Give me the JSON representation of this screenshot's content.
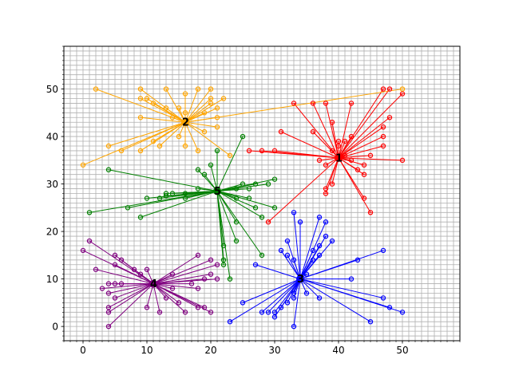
{
  "chart_data": {
    "type": "scatter",
    "title": "",
    "xlabel": "",
    "ylabel": "",
    "xlim": [
      -3,
      59
    ],
    "ylim": [
      -3,
      59
    ],
    "x_ticks": [
      0,
      10,
      20,
      30,
      40,
      50
    ],
    "y_ticks": [
      0,
      10,
      20,
      30,
      40,
      50
    ],
    "minor_tick_step": 1,
    "grid": "minor",
    "legend": "none",
    "series": [
      {
        "label": "1",
        "color": "#ff0000",
        "center": [
          40,
          35.5
        ],
        "points": [
          [
            33,
            47
          ],
          [
            36,
            47
          ],
          [
            38,
            47
          ],
          [
            42,
            47
          ],
          [
            39,
            43
          ],
          [
            36,
            41
          ],
          [
            31,
            41
          ],
          [
            26,
            37
          ],
          [
            28,
            37
          ],
          [
            30,
            37
          ],
          [
            37,
            35
          ],
          [
            38,
            34
          ],
          [
            39,
            37
          ],
          [
            40,
            38
          ],
          [
            40,
            39
          ],
          [
            41,
            36
          ],
          [
            41,
            39
          ],
          [
            42,
            35
          ],
          [
            42,
            40
          ],
          [
            43,
            33
          ],
          [
            44,
            32
          ],
          [
            44,
            34
          ],
          [
            45,
            36
          ],
          [
            47,
            38
          ],
          [
            47,
            40
          ],
          [
            47,
            42
          ],
          [
            48,
            44
          ],
          [
            47,
            50
          ],
          [
            48,
            50
          ],
          [
            50,
            49
          ],
          [
            50,
            35
          ],
          [
            44,
            27
          ],
          [
            45,
            24
          ],
          [
            38,
            29
          ],
          [
            38,
            28
          ],
          [
            39,
            30
          ],
          [
            29,
            22
          ]
        ]
      },
      {
        "label": "2",
        "color": "#ffa500",
        "center": [
          16,
          43
        ],
        "points": [
          [
            2,
            50
          ],
          [
            9,
            50
          ],
          [
            13,
            50
          ],
          [
            10,
            48
          ],
          [
            9,
            48
          ],
          [
            11,
            47
          ],
          [
            13,
            46
          ],
          [
            15,
            46
          ],
          [
            16,
            49
          ],
          [
            18,
            50
          ],
          [
            20,
            50
          ],
          [
            20,
            48
          ],
          [
            22,
            48
          ],
          [
            20,
            47
          ],
          [
            21,
            46
          ],
          [
            19,
            45
          ],
          [
            21,
            44
          ],
          [
            21,
            42
          ],
          [
            19,
            41
          ],
          [
            15,
            40
          ],
          [
            16,
            38
          ],
          [
            18,
            37
          ],
          [
            23,
            36
          ],
          [
            11,
            39
          ],
          [
            12,
            38
          ],
          [
            9,
            37
          ],
          [
            6,
            37
          ],
          [
            4,
            38
          ],
          [
            0,
            34
          ],
          [
            9,
            44
          ],
          [
            14,
            44
          ],
          [
            16,
            45
          ],
          [
            50,
            50
          ]
        ]
      },
      {
        "label": "5",
        "color": "#008000",
        "center": [
          21,
          28.5
        ],
        "points": [
          [
            4,
            33
          ],
          [
            1,
            24
          ],
          [
            7,
            25
          ],
          [
            9,
            23
          ],
          [
            10,
            27
          ],
          [
            12,
            27
          ],
          [
            13,
            28
          ],
          [
            13,
            27.5
          ],
          [
            16,
            27
          ],
          [
            18,
            29
          ],
          [
            18,
            33
          ],
          [
            19,
            32
          ],
          [
            20,
            34
          ],
          [
            21,
            37
          ],
          [
            25,
            40
          ],
          [
            24,
            29
          ],
          [
            25,
            30
          ],
          [
            26,
            29
          ],
          [
            27,
            30
          ],
          [
            29,
            30
          ],
          [
            30,
            31
          ],
          [
            26,
            27
          ],
          [
            27,
            25
          ],
          [
            28,
            23
          ],
          [
            30,
            25
          ],
          [
            24,
            22
          ],
          [
            24,
            18
          ],
          [
            22,
            17
          ],
          [
            22,
            14
          ],
          [
            22,
            13
          ],
          [
            23,
            10
          ],
          [
            28,
            15
          ],
          [
            24,
            27
          ],
          [
            14,
            28
          ],
          [
            16,
            28
          ]
        ]
      },
      {
        "label": "3",
        "color": "#0000ff",
        "center": [
          34,
          10
        ],
        "points": [
          [
            33,
            24
          ],
          [
            34,
            22
          ],
          [
            32,
            18
          ],
          [
            31,
            16
          ],
          [
            32,
            15
          ],
          [
            33,
            14
          ],
          [
            36,
            16
          ],
          [
            37,
            17
          ],
          [
            38,
            19
          ],
          [
            37,
            23
          ],
          [
            38,
            22
          ],
          [
            39,
            18
          ],
          [
            37,
            15
          ],
          [
            36,
            14
          ],
          [
            43,
            14
          ],
          [
            47,
            16
          ],
          [
            42,
            10
          ],
          [
            47,
            6
          ],
          [
            48,
            4
          ],
          [
            50,
            3
          ],
          [
            45,
            1
          ],
          [
            37,
            6
          ],
          [
            35,
            7
          ],
          [
            33,
            7
          ],
          [
            33,
            6
          ],
          [
            32,
            5
          ],
          [
            31,
            4
          ],
          [
            30,
            3
          ],
          [
            29,
            3
          ],
          [
            28,
            3
          ],
          [
            25,
            5
          ],
          [
            23,
            1
          ],
          [
            27,
            13
          ],
          [
            30,
            2
          ],
          [
            33,
            0
          ],
          [
            35,
            11
          ]
        ]
      },
      {
        "label": "4",
        "color": "#800080",
        "center": [
          11,
          9
        ],
        "points": [
          [
            1,
            18
          ],
          [
            0,
            16
          ],
          [
            2,
            12
          ],
          [
            5,
            15
          ],
          [
            6,
            14
          ],
          [
            5,
            13
          ],
          [
            8,
            12
          ],
          [
            4,
            9
          ],
          [
            3,
            8
          ],
          [
            4,
            7
          ],
          [
            5,
            6
          ],
          [
            4,
            4
          ],
          [
            4,
            3
          ],
          [
            4,
            0
          ],
          [
            5,
            9
          ],
          [
            6,
            9
          ],
          [
            9,
            11
          ],
          [
            10,
            12
          ],
          [
            10,
            4
          ],
          [
            12,
            3
          ],
          [
            13,
            6
          ],
          [
            14,
            8
          ],
          [
            15,
            5
          ],
          [
            16,
            3
          ],
          [
            17,
            9
          ],
          [
            18,
            8
          ],
          [
            19,
            10
          ],
          [
            20,
            11
          ],
          [
            21,
            10
          ],
          [
            18,
            15
          ],
          [
            20,
            14
          ],
          [
            21,
            13
          ],
          [
            19,
            4
          ],
          [
            20,
            3
          ],
          [
            18,
            4
          ],
          [
            14,
            11
          ]
        ]
      }
    ]
  }
}
